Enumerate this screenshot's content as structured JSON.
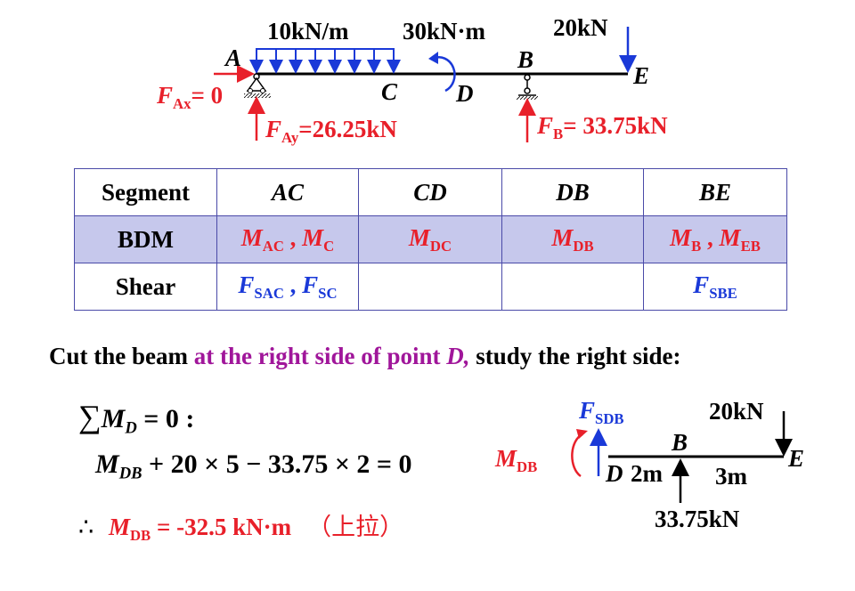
{
  "beam": {
    "load_udl": "10kN/m",
    "load_moment": "30kN·m",
    "load_point": "20kN",
    "pt_A": "A",
    "pt_B": "B",
    "pt_C": "C",
    "pt_D": "D",
    "pt_E": "E",
    "fax_F": "F",
    "fax_sub": "Ax",
    "fax_val": "= 0",
    "fay_F": "F",
    "fay_sub": "Ay",
    "fay_val": "=26.25kN",
    "fb_F": "F",
    "fb_sub": "B",
    "fb_val": "= 33.75kN"
  },
  "table": {
    "headers": [
      "Segment",
      "AC",
      "CD",
      "DB",
      "BE"
    ],
    "bdm_label": "BDM",
    "shear_label": "Shear",
    "bdm": {
      "ac_1": "M",
      "ac_1_sub": "AC",
      "ac_sep": " , ",
      "ac_2": "M",
      "ac_2_sub": "C",
      "cd": "M",
      "cd_sub": "DC",
      "db": "M",
      "db_sub": "DB",
      "be_1": "M",
      "be_1_sub": "B",
      "be_sep": " , ",
      "be_2": "M",
      "be_2_sub": "EB"
    },
    "shear": {
      "ac_1": "F",
      "ac_1_sub": "SAC",
      "ac_sep": " , ",
      "ac_2": "F",
      "ac_2_sub": "SC",
      "be": "F",
      "be_sub": "SBE"
    }
  },
  "instruction": {
    "part1": "Cut the beam ",
    "part2": "at the right side of point ",
    "part3": "D,",
    "part4": " study the right side:"
  },
  "equations": {
    "sigma": "∑",
    "sum_M": "M",
    "sum_sub": "D",
    "sum_rest": " = 0 :",
    "eq_M": "M",
    "eq_sub": "DB",
    "eq_rest": " + 20 × 5 − 33.75 × 2 = 0",
    "therefore": "∴",
    "res_M": "M",
    "res_sub": "DB",
    "res_val": " = -32.5 kN·m",
    "res_note": "（上拉）"
  },
  "free_body": {
    "fsdb_F": "F",
    "fsdb_sub": "SDB",
    "load": "20kN",
    "pt_B": "B",
    "pt_D": "D",
    "pt_E": "E",
    "dist1": "2m",
    "dist2": "3m",
    "reaction": "33.75kN",
    "mdb_M": "M",
    "mdb_sub": "DB"
  },
  "colors": {
    "red": "#e8202a",
    "blue": "#1a39d8",
    "purple": "#a0169a",
    "table_border": "#4a4aa8",
    "table_fill": "#c6c8ec"
  }
}
